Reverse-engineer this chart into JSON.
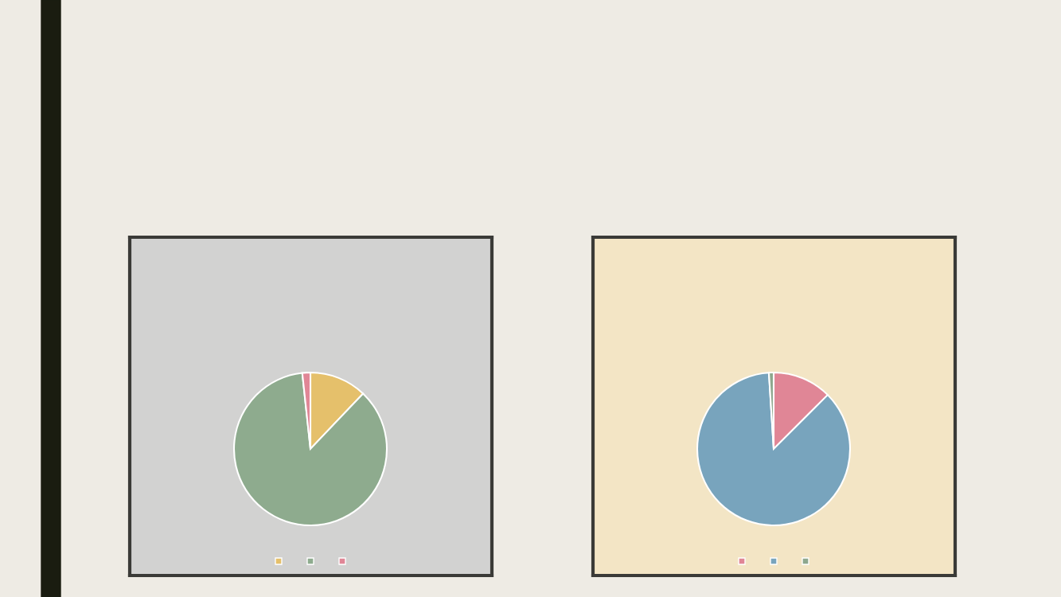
{
  "chart_data": [
    {
      "type": "pie",
      "categories": [
        null,
        null,
        null
      ],
      "values": [
        12.1,
        86.2,
        1.7
      ],
      "colors": [
        "#e5c06b",
        "#8eab8e",
        "#e08696"
      ]
    },
    {
      "type": "pie",
      "categories": [
        null,
        null,
        null
      ],
      "values": [
        12.5,
        86.5,
        1.0
      ],
      "colors": [
        "#e08696",
        "#78a4bd",
        "#8ea88e"
      ]
    }
  ]
}
